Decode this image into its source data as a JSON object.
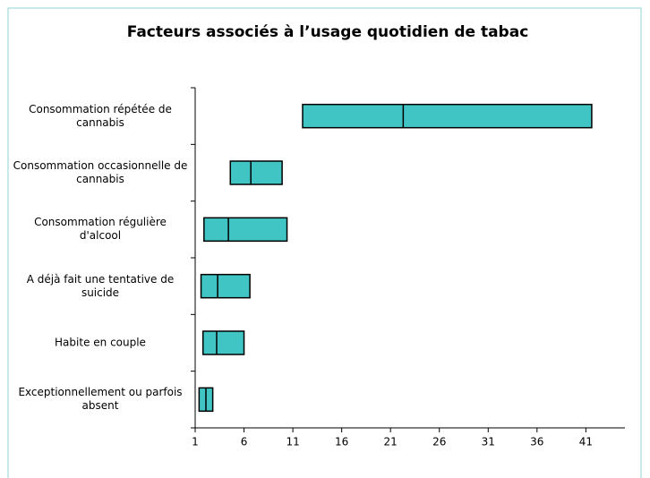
{
  "chart_data": {
    "type": "range_bar",
    "title": "Facteurs associés à l’usage quotidien de tabac",
    "categories": [
      "Consommation répétée de cannabis",
      "Consommation occasionnelle de cannabis",
      "Consommation régulière d'alcool",
      "A déjà fait une tentative de suicide",
      "Habite en couple",
      "Exceptionnellement ou parfois absent"
    ],
    "low": [
      12.0,
      4.6,
      1.9,
      1.6,
      1.8,
      1.4
    ],
    "values": [
      22.3,
      6.7,
      4.4,
      3.3,
      3.2,
      2.1
    ],
    "high": [
      41.6,
      9.9,
      10.4,
      6.6,
      6.0,
      2.8
    ],
    "color": "#40c4c4",
    "xlim": [
      1,
      45
    ],
    "xticks": [
      1,
      6,
      11,
      16,
      21,
      26,
      31,
      36,
      41
    ]
  }
}
